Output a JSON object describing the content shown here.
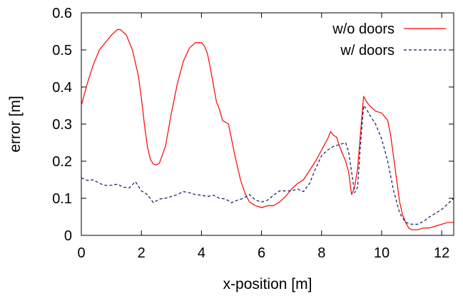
{
  "chart_data": {
    "type": "line",
    "xlabel": "x-position [m]",
    "ylabel": "error [m]",
    "xlim": [
      0,
      12.4
    ],
    "ylim": [
      0,
      0.6
    ],
    "xticks": [
      0,
      2,
      4,
      6,
      8,
      10,
      12
    ],
    "yticks": [
      0,
      0.1,
      0.2,
      0.3,
      0.4,
      0.5,
      0.6
    ],
    "xtick_labels": [
      "0",
      "2",
      "4",
      "6",
      "8",
      "10",
      "12"
    ],
    "ytick_labels": [
      "0",
      "0.1",
      "0.2",
      "0.3",
      "0.4",
      "0.5",
      "0.6"
    ],
    "grid": false,
    "legend_position": "top-right",
    "series": [
      {
        "name": "w/o doors",
        "color": "#ff0000",
        "style": "solid",
        "x": [
          0.0,
          0.2,
          0.4,
          0.6,
          0.8,
          1.0,
          1.2,
          1.3,
          1.5,
          1.7,
          1.9,
          2.0,
          2.1,
          2.2,
          2.3,
          2.4,
          2.5,
          2.6,
          2.8,
          3.0,
          3.2,
          3.4,
          3.6,
          3.8,
          3.9,
          4.0,
          4.1,
          4.2,
          4.3,
          4.5,
          4.6,
          4.7,
          4.8,
          4.9,
          5.0,
          5.1,
          5.2,
          5.3,
          5.4,
          5.5,
          5.6,
          5.7,
          5.8,
          6.0,
          6.2,
          6.4,
          6.6,
          6.8,
          7.0,
          7.2,
          7.4,
          7.6,
          7.8,
          8.0,
          8.2,
          8.3,
          8.4,
          8.5,
          8.6,
          8.7,
          8.8,
          8.9,
          9.0,
          9.1,
          9.2,
          9.3,
          9.4,
          9.5,
          9.6,
          9.8,
          10.0,
          10.2,
          10.3,
          10.4,
          10.5,
          10.6,
          10.7,
          10.8,
          10.9,
          11.0,
          11.2,
          11.4,
          11.6,
          11.8,
          12.0,
          12.2,
          12.4
        ],
        "y": [
          0.35,
          0.41,
          0.46,
          0.5,
          0.52,
          0.54,
          0.555,
          0.555,
          0.54,
          0.5,
          0.43,
          0.37,
          0.3,
          0.24,
          0.205,
          0.192,
          0.19,
          0.195,
          0.24,
          0.33,
          0.41,
          0.47,
          0.505,
          0.52,
          0.52,
          0.52,
          0.51,
          0.49,
          0.45,
          0.36,
          0.34,
          0.31,
          0.305,
          0.3,
          0.26,
          0.22,
          0.185,
          0.15,
          0.125,
          0.105,
          0.09,
          0.085,
          0.08,
          0.075,
          0.08,
          0.08,
          0.09,
          0.105,
          0.125,
          0.14,
          0.15,
          0.175,
          0.2,
          0.23,
          0.26,
          0.28,
          0.27,
          0.265,
          0.24,
          0.22,
          0.2,
          0.17,
          0.11,
          0.13,
          0.18,
          0.28,
          0.375,
          0.36,
          0.35,
          0.335,
          0.33,
          0.31,
          0.27,
          0.21,
          0.15,
          0.09,
          0.055,
          0.035,
          0.02,
          0.015,
          0.015,
          0.02,
          0.02,
          0.025,
          0.03,
          0.035,
          0.035
        ]
      },
      {
        "name": "w/ doors",
        "color": "#0a1a5c",
        "style": "dashed",
        "x": [
          0.0,
          0.2,
          0.4,
          0.6,
          0.8,
          1.0,
          1.2,
          1.4,
          1.6,
          1.8,
          2.0,
          2.2,
          2.4,
          2.6,
          2.8,
          3.0,
          3.2,
          3.4,
          3.6,
          3.8,
          4.0,
          4.2,
          4.4,
          4.6,
          4.8,
          5.0,
          5.2,
          5.4,
          5.6,
          5.8,
          6.0,
          6.2,
          6.4,
          6.6,
          6.8,
          7.0,
          7.2,
          7.4,
          7.6,
          7.8,
          8.0,
          8.2,
          8.4,
          8.6,
          8.8,
          8.9,
          9.0,
          9.1,
          9.2,
          9.3,
          9.4,
          9.5,
          9.6,
          9.8,
          10.0,
          10.2,
          10.4,
          10.6,
          10.8,
          11.0,
          11.2,
          11.4,
          11.6,
          11.8,
          12.0,
          12.2,
          12.4
        ],
        "y": [
          0.155,
          0.148,
          0.15,
          0.14,
          0.135,
          0.135,
          0.138,
          0.13,
          0.128,
          0.145,
          0.12,
          0.11,
          0.088,
          0.098,
          0.1,
          0.105,
          0.11,
          0.118,
          0.115,
          0.11,
          0.108,
          0.105,
          0.108,
          0.1,
          0.098,
          0.088,
          0.095,
          0.1,
          0.11,
          0.095,
          0.09,
          0.095,
          0.108,
          0.12,
          0.12,
          0.12,
          0.125,
          0.118,
          0.14,
          0.18,
          0.215,
          0.23,
          0.24,
          0.245,
          0.25,
          0.225,
          0.17,
          0.115,
          0.13,
          0.25,
          0.35,
          0.34,
          0.325,
          0.3,
          0.26,
          0.2,
          0.12,
          0.06,
          0.035,
          0.03,
          0.03,
          0.038,
          0.05,
          0.06,
          0.07,
          0.085,
          0.1
        ]
      }
    ]
  }
}
